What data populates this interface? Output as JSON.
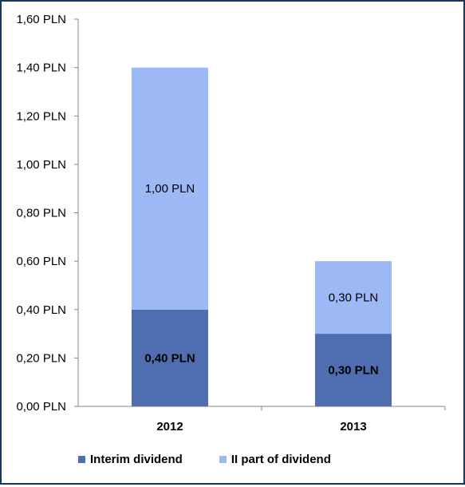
{
  "chart_data": {
    "type": "bar",
    "stacked": true,
    "categories": [
      "2012",
      "2013"
    ],
    "series": [
      {
        "name": "Interim dividend",
        "values": [
          0.4,
          0.3
        ],
        "labels": [
          "0,40 PLN",
          "0,30 PLN"
        ],
        "color": "#4f6eb1",
        "label_bold": true
      },
      {
        "name": "II part of dividend",
        "values": [
          1.0,
          0.3
        ],
        "labels": [
          "1,00 PLN",
          "0,30 PLN"
        ],
        "color": "#9cb9f6",
        "label_bold": false
      }
    ],
    "ylim": [
      0,
      1.6
    ],
    "yticks": [
      0,
      0.2,
      0.4,
      0.6,
      0.8,
      1.0,
      1.2,
      1.4,
      1.6
    ],
    "ytick_labels": [
      "0,00 PLN",
      "0,20 PLN",
      "0,40 PLN",
      "0,60 PLN",
      "0,80 PLN",
      "1,00 PLN",
      "1,20 PLN",
      "1,40 PLN",
      "1,60 PLN"
    ],
    "legend_position": "bottom",
    "grid": false
  }
}
